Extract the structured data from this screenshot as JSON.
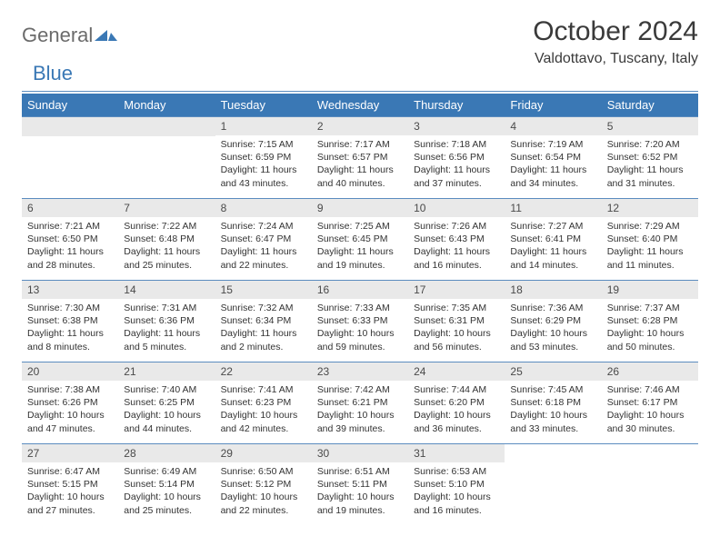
{
  "brand": {
    "text1": "General",
    "text2": "Blue"
  },
  "title": "October 2024",
  "location": "Valdottavo, Tuscany, Italy",
  "colors": {
    "header_bg": "#3a78b5",
    "header_text": "#ffffff",
    "daynum_bg": "#e9e9e9",
    "rule": "#5b8cbf",
    "body_text": "#333333"
  },
  "weekdays": [
    "Sunday",
    "Monday",
    "Tuesday",
    "Wednesday",
    "Thursday",
    "Friday",
    "Saturday"
  ],
  "leading_blanks": 2,
  "days": [
    {
      "n": "1",
      "sr": "7:15 AM",
      "ss": "6:59 PM",
      "dl": "11 hours and 43 minutes."
    },
    {
      "n": "2",
      "sr": "7:17 AM",
      "ss": "6:57 PM",
      "dl": "11 hours and 40 minutes."
    },
    {
      "n": "3",
      "sr": "7:18 AM",
      "ss": "6:56 PM",
      "dl": "11 hours and 37 minutes."
    },
    {
      "n": "4",
      "sr": "7:19 AM",
      "ss": "6:54 PM",
      "dl": "11 hours and 34 minutes."
    },
    {
      "n": "5",
      "sr": "7:20 AM",
      "ss": "6:52 PM",
      "dl": "11 hours and 31 minutes."
    },
    {
      "n": "6",
      "sr": "7:21 AM",
      "ss": "6:50 PM",
      "dl": "11 hours and 28 minutes."
    },
    {
      "n": "7",
      "sr": "7:22 AM",
      "ss": "6:48 PM",
      "dl": "11 hours and 25 minutes."
    },
    {
      "n": "8",
      "sr": "7:24 AM",
      "ss": "6:47 PM",
      "dl": "11 hours and 22 minutes."
    },
    {
      "n": "9",
      "sr": "7:25 AM",
      "ss": "6:45 PM",
      "dl": "11 hours and 19 minutes."
    },
    {
      "n": "10",
      "sr": "7:26 AM",
      "ss": "6:43 PM",
      "dl": "11 hours and 16 minutes."
    },
    {
      "n": "11",
      "sr": "7:27 AM",
      "ss": "6:41 PM",
      "dl": "11 hours and 14 minutes."
    },
    {
      "n": "12",
      "sr": "7:29 AM",
      "ss": "6:40 PM",
      "dl": "11 hours and 11 minutes."
    },
    {
      "n": "13",
      "sr": "7:30 AM",
      "ss": "6:38 PM",
      "dl": "11 hours and 8 minutes."
    },
    {
      "n": "14",
      "sr": "7:31 AM",
      "ss": "6:36 PM",
      "dl": "11 hours and 5 minutes."
    },
    {
      "n": "15",
      "sr": "7:32 AM",
      "ss": "6:34 PM",
      "dl": "11 hours and 2 minutes."
    },
    {
      "n": "16",
      "sr": "7:33 AM",
      "ss": "6:33 PM",
      "dl": "10 hours and 59 minutes."
    },
    {
      "n": "17",
      "sr": "7:35 AM",
      "ss": "6:31 PM",
      "dl": "10 hours and 56 minutes."
    },
    {
      "n": "18",
      "sr": "7:36 AM",
      "ss": "6:29 PM",
      "dl": "10 hours and 53 minutes."
    },
    {
      "n": "19",
      "sr": "7:37 AM",
      "ss": "6:28 PM",
      "dl": "10 hours and 50 minutes."
    },
    {
      "n": "20",
      "sr": "7:38 AM",
      "ss": "6:26 PM",
      "dl": "10 hours and 47 minutes."
    },
    {
      "n": "21",
      "sr": "7:40 AM",
      "ss": "6:25 PM",
      "dl": "10 hours and 44 minutes."
    },
    {
      "n": "22",
      "sr": "7:41 AM",
      "ss": "6:23 PM",
      "dl": "10 hours and 42 minutes."
    },
    {
      "n": "23",
      "sr": "7:42 AM",
      "ss": "6:21 PM",
      "dl": "10 hours and 39 minutes."
    },
    {
      "n": "24",
      "sr": "7:44 AM",
      "ss": "6:20 PM",
      "dl": "10 hours and 36 minutes."
    },
    {
      "n": "25",
      "sr": "7:45 AM",
      "ss": "6:18 PM",
      "dl": "10 hours and 33 minutes."
    },
    {
      "n": "26",
      "sr": "7:46 AM",
      "ss": "6:17 PM",
      "dl": "10 hours and 30 minutes."
    },
    {
      "n": "27",
      "sr": "6:47 AM",
      "ss": "5:15 PM",
      "dl": "10 hours and 27 minutes."
    },
    {
      "n": "28",
      "sr": "6:49 AM",
      "ss": "5:14 PM",
      "dl": "10 hours and 25 minutes."
    },
    {
      "n": "29",
      "sr": "6:50 AM",
      "ss": "5:12 PM",
      "dl": "10 hours and 22 minutes."
    },
    {
      "n": "30",
      "sr": "6:51 AM",
      "ss": "5:11 PM",
      "dl": "10 hours and 19 minutes."
    },
    {
      "n": "31",
      "sr": "6:53 AM",
      "ss": "5:10 PM",
      "dl": "10 hours and 16 minutes."
    }
  ],
  "labels": {
    "sunrise": "Sunrise: ",
    "sunset": "Sunset: ",
    "daylight": "Daylight: "
  }
}
